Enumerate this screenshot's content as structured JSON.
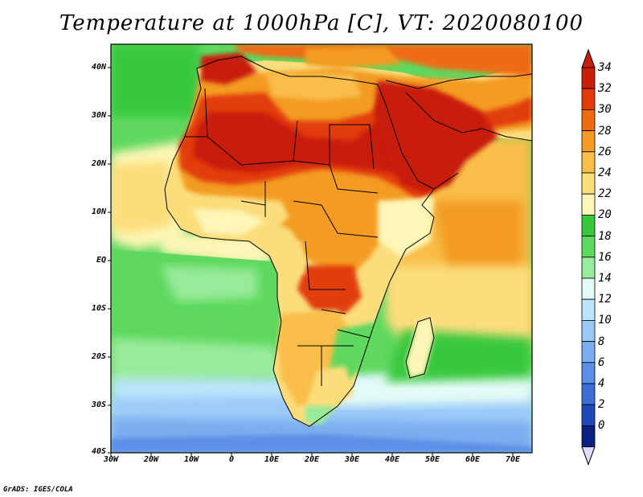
{
  "title": "Temperature at 1000hPa [C], VT: 2020080100",
  "footer": "GrADS: IGES/COLA",
  "lat_labels": [
    "40N",
    "30N",
    "20N",
    "10N",
    "EQ",
    "10S",
    "20S",
    "30S",
    "40S"
  ],
  "lon_labels": [
    "30W",
    "20W",
    "10W",
    "0",
    "10E",
    "20E",
    "30E",
    "40E",
    "50E",
    "60E",
    "70E"
  ],
  "colorbar": {
    "labels": [
      "34",
      "32",
      "30",
      "28",
      "26",
      "24",
      "22",
      "20",
      "18",
      "16",
      "14",
      "12",
      "10",
      "8",
      "6",
      "4",
      "2",
      "0"
    ],
    "colors": [
      "#c81e0a",
      "#e23c0c",
      "#ef6b12",
      "#f39b24",
      "#f8be4a",
      "#fbdd7c",
      "#fdf6b6",
      "#38c83c",
      "#5ed85e",
      "#98eb9a",
      "#e3fbf6",
      "#bce5fc",
      "#9ccaf8",
      "#7aadef",
      "#5b8fe5",
      "#3c6ed3",
      "#2249b8",
      "#0b207f"
    ],
    "top_arrow_color": "#c81e0a",
    "bottom_arrow_color": "#dcdcff"
  }
}
